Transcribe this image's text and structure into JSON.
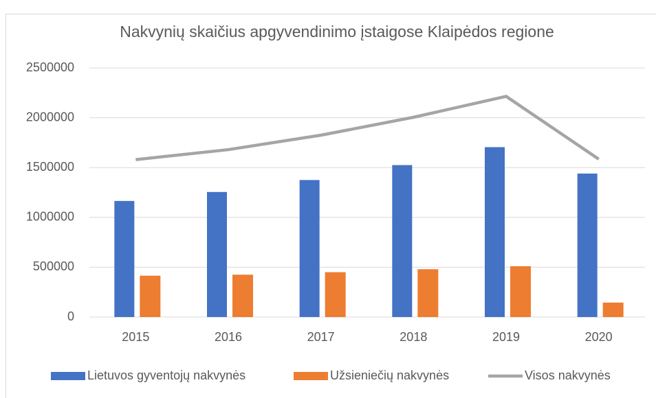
{
  "chart_data": {
    "type": "bar",
    "title": "Nakvynių skaičius apgyvendinimo įstaigose Klaipėdos regione",
    "categories": [
      "2015",
      "2016",
      "2017",
      "2018",
      "2019",
      "2020"
    ],
    "series": [
      {
        "name": "Lietuvos gyventojų nakvynės",
        "color": "#4472c4",
        "type": "bar",
        "values": [
          1165000,
          1255000,
          1375000,
          1525000,
          1705000,
          1440000
        ]
      },
      {
        "name": "Užsieniečių nakvynės",
        "color": "#ed7d31",
        "type": "bar",
        "values": [
          415000,
          425000,
          450000,
          480000,
          510000,
          145000
        ]
      },
      {
        "name": "Visos nakvynės",
        "color": "#a5a5a5",
        "type": "line",
        "values": [
          1580000,
          1680000,
          1825000,
          2005000,
          2215000,
          1585000
        ]
      }
    ],
    "ylim": [
      0,
      2500000
    ],
    "yticks": [
      0,
      500000,
      1000000,
      1500000,
      2000000,
      2500000
    ],
    "grid": true,
    "legend": "bottom"
  }
}
